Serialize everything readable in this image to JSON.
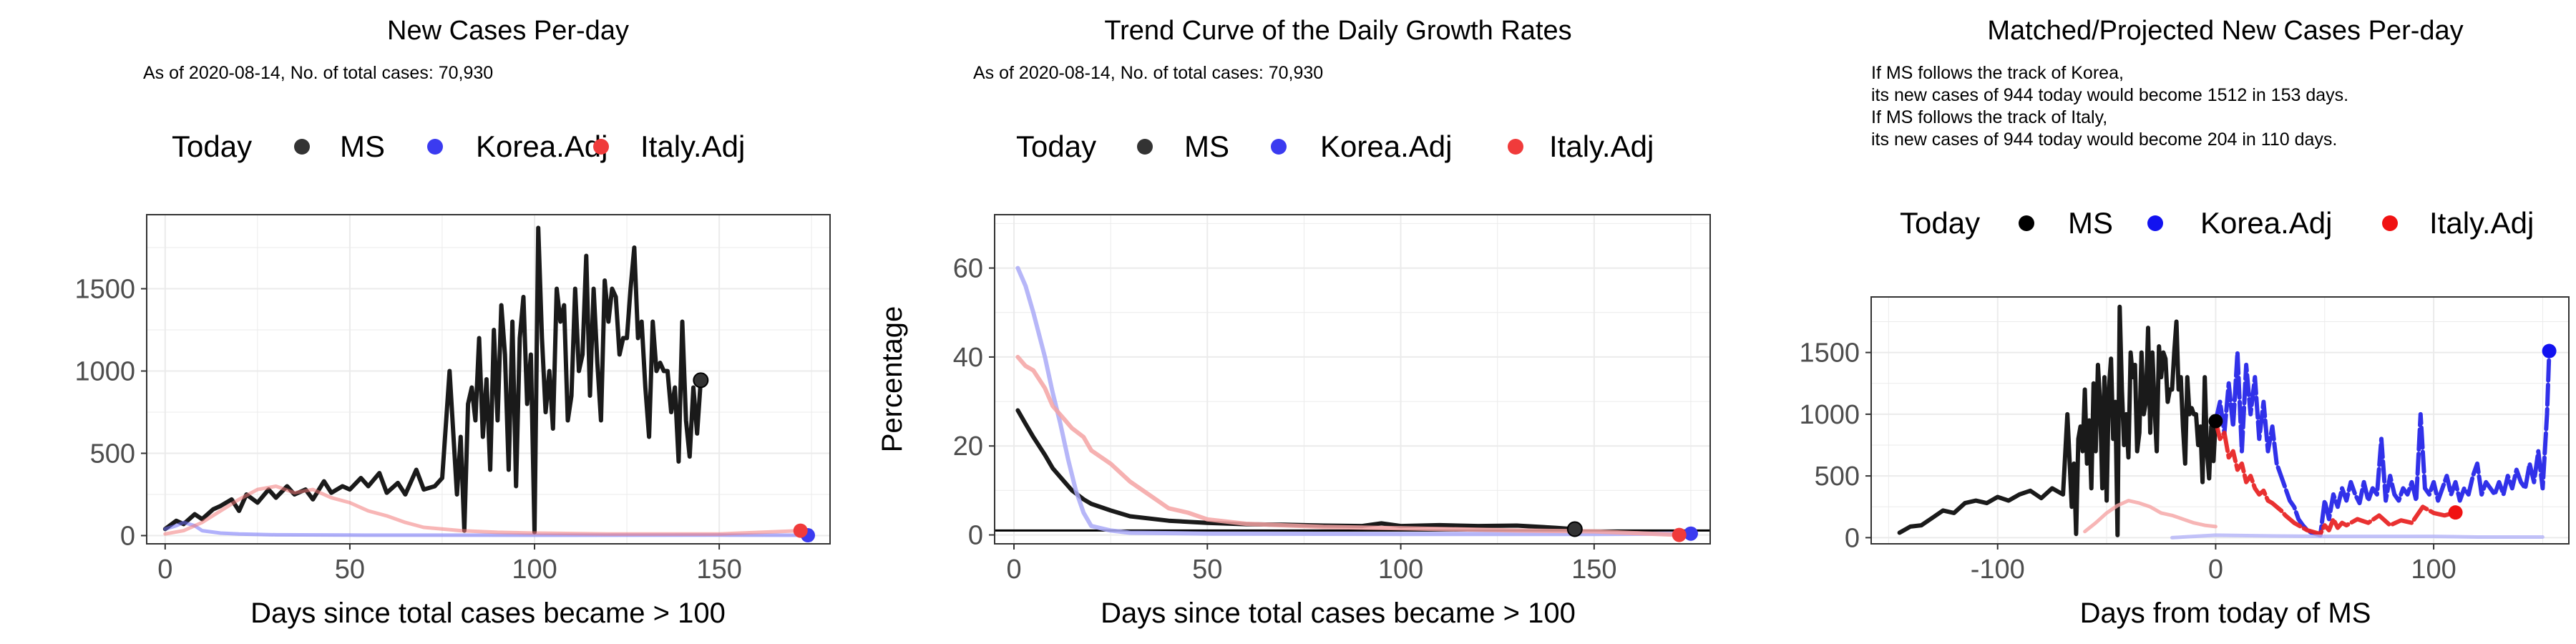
{
  "chart_data": [
    {
      "type": "line",
      "title": "New Cases Per-day",
      "subtitle": "As of 2020-08-14, No. of total cases: 70,930",
      "xlabel": "Days since total cases became > 100",
      "ylabel": "",
      "xlim": [
        -5,
        180
      ],
      "ylim": [
        -50,
        1950
      ],
      "xticks": [
        0,
        50,
        100,
        150
      ],
      "yticks": [
        0,
        500,
        1000,
        1500
      ],
      "legend": {
        "title": "Today",
        "placement": "top",
        "items": [
          "MS",
          "Korea.Adj",
          "Italy.Adj"
        ]
      },
      "grid": true,
      "series": [
        {
          "name": "MS",
          "color": "#1a1a1a",
          "x": [
            0,
            3,
            5,
            8,
            10,
            13,
            15,
            18,
            20,
            22,
            25,
            28,
            30,
            33,
            35,
            38,
            40,
            43,
            45,
            48,
            50,
            53,
            55,
            58,
            60,
            63,
            65,
            68,
            70,
            73,
            75,
            77,
            79,
            80,
            81,
            82,
            83,
            84,
            85,
            86,
            87,
            88,
            89,
            90,
            91,
            92,
            93,
            94,
            95,
            96,
            97,
            98,
            99,
            100,
            101,
            102,
            103,
            104,
            105,
            106,
            107,
            108,
            109,
            110,
            111,
            112,
            113,
            114,
            115,
            116,
            117,
            118,
            119,
            120,
            121,
            122,
            123,
            124,
            125,
            126,
            127,
            128,
            129,
            130,
            131,
            132,
            133,
            134,
            135,
            136,
            137,
            138,
            139,
            140,
            141,
            142,
            143,
            144,
            145
          ],
          "y": [
            40,
            90,
            70,
            130,
            100,
            160,
            180,
            220,
            150,
            250,
            200,
            280,
            230,
            300,
            250,
            280,
            220,
            330,
            260,
            300,
            280,
            350,
            300,
            380,
            260,
            320,
            250,
            400,
            280,
            300,
            350,
            1000,
            250,
            600,
            30,
            800,
            900,
            700,
            1200,
            600,
            950,
            400,
            1250,
            700,
            1400,
            1100,
            400,
            1300,
            300,
            1200,
            1450,
            800,
            1100,
            20,
            1870,
            1200,
            750,
            1000,
            650,
            1500,
            1300,
            1400,
            700,
            850,
            1500,
            1000,
            1100,
            1700,
            850,
            1500,
            1050,
            700,
            1550,
            1300,
            1500,
            1450,
            1100,
            1200,
            1200,
            1500,
            1750,
            1200,
            1300,
            900,
            600,
            1300,
            1000,
            1050,
            1000,
            1000,
            750,
            900,
            450,
            1300,
            700,
            480,
            900,
            620,
            944
          ],
          "today": [
            145,
            944
          ]
        },
        {
          "name": "Korea.Adj",
          "color": "#6f6ff7",
          "x": [
            0,
            3,
            5,
            8,
            10,
            15,
            20,
            30,
            50,
            100,
            150,
            174
          ],
          "y": [
            40,
            60,
            80,
            60,
            30,
            15,
            10,
            5,
            3,
            2,
            3,
            2
          ],
          "today": [
            174,
            2
          ]
        },
        {
          "name": "Italy.Adj",
          "color": "#f27a7a",
          "x": [
            0,
            5,
            10,
            15,
            20,
            25,
            30,
            35,
            40,
            45,
            50,
            55,
            60,
            65,
            70,
            80,
            90,
            100,
            120,
            150,
            172
          ],
          "y": [
            10,
            30,
            80,
            150,
            220,
            280,
            300,
            260,
            280,
            230,
            200,
            150,
            120,
            80,
            50,
            30,
            20,
            15,
            10,
            10,
            30
          ],
          "today": [
            172,
            30
          ]
        }
      ]
    },
    {
      "type": "line",
      "title": "Trend Curve of the Daily Growth Rates",
      "subtitle": "As of 2020-08-14, No. of total cases: 70,930",
      "xlabel": "Days since total cases became > 100",
      "ylabel": "Percentage",
      "xlim": [
        -5,
        180
      ],
      "ylim": [
        -2,
        72
      ],
      "xticks": [
        0,
        50,
        100,
        150
      ],
      "yticks": [
        0,
        20,
        40,
        60
      ],
      "legend": {
        "title": "Today",
        "placement": "top",
        "items": [
          "MS",
          "Korea.Adj",
          "Italy.Adj"
        ]
      },
      "grid": true,
      "hline": 1,
      "series": [
        {
          "name": "MS",
          "color": "#1a1a1a",
          "x": [
            1,
            3,
            5,
            8,
            10,
            13,
            15,
            18,
            20,
            25,
            30,
            40,
            50,
            60,
            70,
            80,
            90,
            95,
            100,
            110,
            120,
            130,
            140,
            145
          ],
          "y": [
            28,
            25,
            22,
            18,
            15,
            12,
            10,
            8,
            7,
            5.5,
            4.2,
            3.2,
            2.7,
            2.4,
            2.3,
            2.1,
            2.0,
            2.6,
            2.0,
            2.2,
            2.0,
            2.1,
            1.6,
            1.3
          ],
          "today": [
            145,
            1.3
          ]
        },
        {
          "name": "Korea.Adj",
          "color": "#a9a9f7",
          "x": [
            1,
            3,
            5,
            8,
            10,
            12,
            14,
            16,
            18,
            20,
            25,
            30,
            50,
            100,
            150,
            175
          ],
          "y": [
            60,
            56,
            50,
            40,
            32,
            25,
            17,
            10,
            5,
            2,
            1,
            0.5,
            0.3,
            0.2,
            0.2,
            0.3
          ],
          "today": [
            175,
            0.3
          ]
        },
        {
          "name": "Italy.Adj",
          "color": "#f5a3a3",
          "x": [
            1,
            3,
            5,
            8,
            10,
            13,
            15,
            18,
            20,
            25,
            30,
            35,
            40,
            45,
            50,
            60,
            80,
            100,
            130,
            150,
            172
          ],
          "y": [
            40,
            38,
            37,
            33,
            29,
            26,
            24,
            22,
            19,
            16,
            12,
            9,
            6,
            5,
            3.5,
            2.5,
            1.8,
            1.5,
            1,
            0.8,
            0
          ],
          "today": [
            172,
            0
          ]
        }
      ]
    },
    {
      "type": "line",
      "title": "Matched/Projected New Cases Per-day",
      "annotation": [
        "If MS follows the track of Korea,",
        "its new cases of 944 today would become 1512 in 153 days.",
        "If MS follows the track of Italy,",
        "its new cases of 944 today would become 204 in 110 days."
      ],
      "xlabel": "Days from today of MS",
      "ylabel": "",
      "xlim": [
        -158,
        162
      ],
      "ylim": [
        -50,
        1950
      ],
      "xticks": [
        -100,
        0,
        100
      ],
      "yticks": [
        0,
        500,
        1000,
        1500
      ],
      "legend": {
        "title": "Today",
        "placement": "top",
        "items": [
          "MS",
          "Korea.Adj",
          "Italy.Adj"
        ]
      },
      "grid": true,
      "series": [
        {
          "name": "MS",
          "color": "#1a1a1a",
          "x": [
            -145,
            -140,
            -135,
            -130,
            -125,
            -120,
            -115,
            -110,
            -105,
            -100,
            -95,
            -90,
            -85,
            -80,
            -75,
            -70,
            -68,
            -66,
            -65,
            -64,
            -63,
            -62,
            -61,
            -60,
            -59,
            -58,
            -57,
            -56,
            -55,
            -54,
            -53,
            -52,
            -51,
            -50,
            -49,
            -48,
            -47,
            -46,
            -45,
            -44,
            -43,
            -42,
            -41,
            -40,
            -39,
            -38,
            -37,
            -36,
            -35,
            -34,
            -33,
            -32,
            -31,
            -30,
            -29,
            -28,
            -27,
            -26,
            -25,
            -24,
            -23,
            -22,
            -21,
            -20,
            -19,
            -18,
            -17,
            -16,
            -15,
            -14,
            -13,
            -12,
            -11,
            -10,
            -9,
            -8,
            -7,
            -6,
            -5,
            -4,
            -3,
            -2,
            -1,
            0
          ],
          "y": [
            40,
            90,
            100,
            160,
            220,
            200,
            280,
            300,
            280,
            330,
            300,
            350,
            380,
            320,
            400,
            350,
            1000,
            250,
            600,
            30,
            800,
            900,
            700,
            1200,
            600,
            950,
            400,
            1250,
            700,
            1400,
            1100,
            400,
            1300,
            300,
            1200,
            1450,
            800,
            1100,
            20,
            1870,
            1200,
            750,
            1000,
            650,
            1500,
            1300,
            1400,
            700,
            850,
            1500,
            1000,
            1100,
            1700,
            850,
            1500,
            1050,
            700,
            1550,
            1300,
            1500,
            1450,
            1100,
            1200,
            1200,
            1500,
            1750,
            1200,
            1300,
            900,
            600,
            1300,
            1000,
            1050,
            1000,
            1000,
            750,
            900,
            450,
            1300,
            700,
            480,
            900,
            620,
            944
          ],
          "today": [
            0,
            944
          ]
        },
        {
          "name": "MS (faded Italy-matched history)",
          "color": "#f5a3a3",
          "x": [
            -60,
            -55,
            -50,
            -45,
            -40,
            -35,
            -30,
            -25,
            -20,
            -15,
            -10,
            -5,
            0
          ],
          "y": [
            50,
            120,
            200,
            260,
            300,
            280,
            250,
            200,
            180,
            150,
            120,
            100,
            90
          ]
        },
        {
          "name": "Korea.Adj",
          "color": "#2626e8",
          "x": [
            0,
            2,
            4,
            6,
            8,
            10,
            12,
            14,
            16,
            18,
            20,
            22,
            24,
            26,
            28,
            30,
            32,
            34,
            36,
            38,
            40,
            42,
            44,
            46,
            48,
            50,
            52,
            54,
            56,
            58,
            60,
            62,
            64,
            66,
            68,
            70,
            72,
            74,
            76,
            78,
            80,
            82,
            84,
            86,
            88,
            90,
            92,
            94,
            96,
            98,
            100,
            102,
            104,
            106,
            108,
            110,
            112,
            114,
            116,
            118,
            120,
            122,
            124,
            126,
            128,
            130,
            132,
            134,
            136,
            138,
            140,
            142,
            144,
            146,
            148,
            150,
            152,
            153
          ],
          "y": [
            944,
            1100,
            850,
            1250,
            900,
            1500,
            700,
            1400,
            1000,
            1300,
            800,
            1100,
            700,
            900,
            600,
            500,
            400,
            300,
            250,
            150,
            100,
            60,
            40,
            30,
            20,
            300,
            150,
            350,
            250,
            400,
            300,
            450,
            350,
            280,
            450,
            300,
            400,
            350,
            800,
            300,
            500,
            350,
            300,
            400,
            350,
            450,
            300,
            1000,
            400,
            350,
            450,
            300,
            400,
            500,
            350,
            450,
            300,
            400,
            350,
            500,
            600,
            350,
            450,
            400,
            350,
            450,
            350,
            500,
            400,
            550,
            450,
            400,
            600,
            450,
            700,
            400,
            1000,
            1512
          ],
          "today": [
            153,
            1512
          ]
        },
        {
          "name": "Italy.Adj",
          "color": "#e82626",
          "x": [
            0,
            2,
            4,
            6,
            8,
            10,
            12,
            14,
            16,
            18,
            20,
            22,
            24,
            26,
            28,
            30,
            32,
            34,
            36,
            38,
            40,
            42,
            44,
            46,
            48,
            50,
            52,
            54,
            56,
            58,
            60,
            65,
            70,
            75,
            80,
            85,
            90,
            95,
            100,
            105,
            110
          ],
          "y": [
            944,
            800,
            850,
            650,
            700,
            550,
            600,
            450,
            500,
            400,
            350,
            380,
            300,
            280,
            250,
            220,
            180,
            150,
            120,
            100,
            80,
            60,
            50,
            40,
            30,
            100,
            60,
            150,
            80,
            120,
            100,
            150,
            120,
            180,
            100,
            140,
            120,
            250,
            200,
            180,
            204
          ],
          "today": [
            110,
            204
          ]
        },
        {
          "name": "Korea.Adj (faded history)",
          "color": "#b3b3f7",
          "x": [
            -20,
            -10,
            0,
            20,
            50,
            80,
            100,
            120,
            150
          ],
          "y": [
            0,
            10,
            20,
            15,
            10,
            10,
            10,
            5,
            5
          ]
        }
      ]
    }
  ]
}
